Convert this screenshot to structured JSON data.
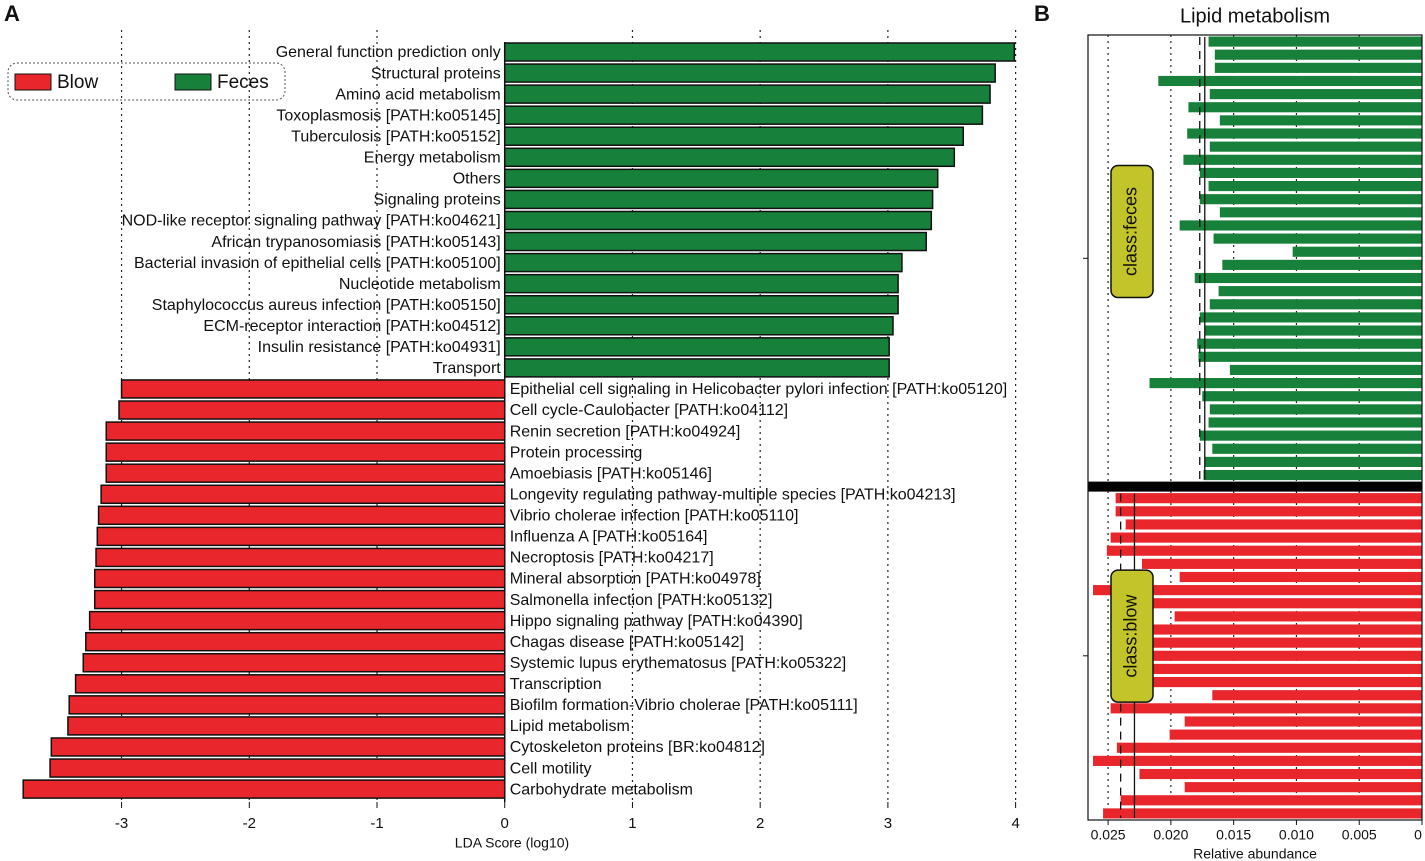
{
  "chart_data": [
    {
      "type": "hbar",
      "panel": "A",
      "xlabel": "LDA Score (log10)",
      "categories": [
        "General function prediction only",
        "Structural proteins",
        "Amino acid metabolism",
        "Toxoplasmosis [PATH:ko05145]",
        "Tuberculosis [PATH:ko05152]",
        "Energy metabolism",
        "Others",
        "Signaling proteins",
        "NOD-like receptor signaling pathway [PATH:ko04621]",
        "African trypanosomiasis [PATH:ko05143]",
        "Bacterial invasion of epithelial cells [PATH:ko05100]",
        "Nucleotide metabolism",
        "Staphylococcus aureus infection [PATH:ko05150]",
        "ECM-receptor interaction [PATH:ko04512]",
        "Insulin resistance [PATH:ko04931]",
        "Transport",
        "Epithelial cell signaling in Helicobacter pylori infection [PATH:ko05120]",
        "Cell cycle-Caulobacter [PATH:ko04112]",
        "Renin secretion [PATH:ko04924]",
        "Protein processing",
        "Amoebiasis [PATH:ko05146]",
        "Longevity regulating pathway-multiple species [PATH:ko04213]",
        "Vibrio cholerae infection [PATH:ko05110]",
        "Influenza A [PATH:ko05164]",
        "Necroptosis [PATH:ko04217]",
        "Mineral absorption [PATH:ko04978]",
        "Salmonella infection [PATH:ko05132]",
        "Hippo signaling pathway [PATH:ko04390]",
        "Chagas disease [PATH:ko05142]",
        "Systemic lupus erythematosus [PATH:ko05322]",
        "Transcription",
        "Biofilm formation-Vibrio cholerae [PATH:ko05111]",
        "Lipid metabolism",
        "Cytoskeleton proteins [BR:ko04812]",
        "Cell motility",
        "Carbohydrate metabolism"
      ],
      "series": [
        {
          "name": "Blow",
          "color": "#e8262b",
          "values": [
            null,
            null,
            null,
            null,
            null,
            null,
            null,
            null,
            null,
            null,
            null,
            null,
            null,
            null,
            null,
            null,
            -3.0,
            -3.02,
            -3.12,
            -3.12,
            -3.12,
            -3.16,
            -3.18,
            -3.19,
            -3.2,
            -3.21,
            -3.21,
            -3.25,
            -3.28,
            -3.3,
            -3.36,
            -3.41,
            -3.42,
            -3.55,
            -3.56,
            -3.77
          ]
        },
        {
          "name": "Feces",
          "color": "#17803a",
          "values": [
            3.99,
            3.84,
            3.8,
            3.74,
            3.59,
            3.52,
            3.39,
            3.35,
            3.34,
            3.3,
            3.11,
            3.08,
            3.08,
            3.04,
            3.01,
            3.01,
            null,
            null,
            null,
            null,
            null,
            null,
            null,
            null,
            null,
            null,
            null,
            null,
            null,
            null,
            null,
            null,
            null,
            null,
            null,
            null
          ]
        }
      ],
      "xlim": [
        -3.85,
        4.05
      ],
      "xticks": [
        -3,
        -2,
        -1,
        0,
        1,
        2,
        3,
        4
      ],
      "grid": true,
      "legend": "upper left"
    },
    {
      "type": "sample_bar",
      "panel": "B",
      "title": "Lipid metabolism",
      "xlabel": "Relative abundance",
      "xlim": [
        0.0266,
        0
      ],
      "xticks": [
        0.025,
        {
          "value": 0.02,
          "label": "0.020"
        },
        0.015,
        {
          "value": 0.01,
          "label": "0.010"
        },
        0.005,
        0
      ],
      "series": [
        {
          "name": "class:feces",
          "color": "#17803a",
          "mean": 0.0173,
          "median": 0.0177,
          "values": [
            0.017,
            0.0165,
            0.0165,
            0.021,
            0.0169,
            0.0186,
            0.0161,
            0.0187,
            0.0169,
            0.019,
            0.0177,
            0.017,
            0.0177,
            0.0161,
            0.0193,
            0.0166,
            0.0103,
            0.0159,
            0.0181,
            0.0162,
            0.0169,
            0.0177,
            0.0173,
            0.0179,
            0.0178,
            0.0153,
            0.0217,
            0.0175,
            0.0169,
            0.017,
            0.0177,
            0.0167,
            0.0173,
            0.0174
          ]
        },
        {
          "name": "class:blow",
          "color": "#e8262b",
          "mean": 0.0229,
          "median": 0.024,
          "values": [
            0.0244,
            0.0244,
            0.0236,
            0.0248,
            0.0251,
            0.0223,
            0.0193,
            0.0262,
            0.0236,
            0.0197,
            0.024,
            0.0242,
            0.0239,
            0.024,
            0.0236,
            0.0167,
            0.0248,
            0.0189,
            0.0201,
            0.0243,
            0.0262,
            0.0225,
            0.0189,
            0.024,
            0.0254
          ]
        }
      ]
    }
  ]
}
